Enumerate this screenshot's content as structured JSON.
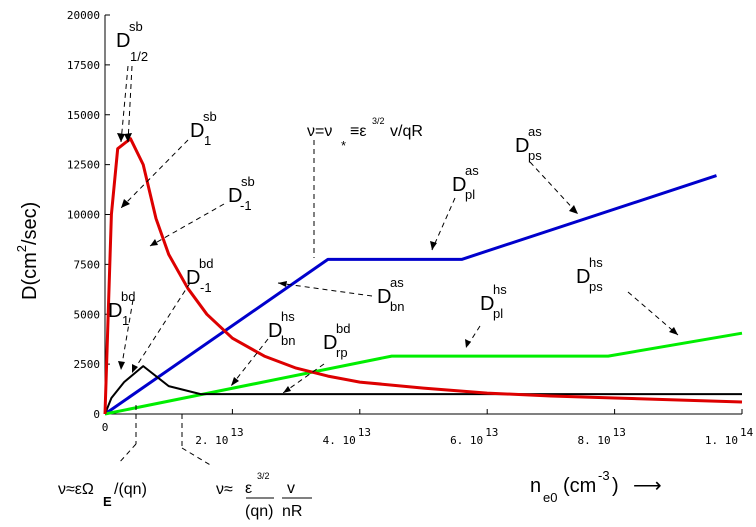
{
  "chart_data": {
    "type": "line",
    "ylabel": "D(cm²/sec)",
    "xlabel": "n_e0(cm⁻³)",
    "ylim": [
      0,
      20000
    ],
    "xlim": [
      0,
      100000000000000.0
    ],
    "y_ticks": [
      0,
      2500,
      5000,
      7500,
      10000,
      12500,
      15000,
      17500,
      20000
    ],
    "y_tick_labels": [
      "0",
      "2500",
      "5000",
      "7500",
      "10000",
      "12500",
      "15000",
      "17500",
      "20000"
    ],
    "x_ticks": [
      {
        "value": 0,
        "main": "0",
        "exp": ""
      },
      {
        "value": 20000000000000.0,
        "main": "2. 10",
        "exp": "13"
      },
      {
        "value": 40000000000000.0,
        "main": "4. 10",
        "exp": "13"
      },
      {
        "value": 60000000000000.0,
        "main": "6. 10",
        "exp": "13"
      },
      {
        "value": 80000000000000.0,
        "main": "8. 10",
        "exp": "13"
      },
      {
        "value": 100000000000000.0,
        "main": "1. 10",
        "exp": "14"
      }
    ],
    "series": [
      {
        "color": "#0000cc",
        "x": [
          0,
          35000000000000.0,
          56000000000000.0,
          96000000000000.0
        ],
        "y": [
          0,
          7750,
          7750,
          11950
        ]
      },
      {
        "color": "#00ee00",
        "x": [
          0,
          45000000000000.0,
          79000000000000.0,
          100000000000000.0
        ],
        "y": [
          0,
          2900,
          2900,
          4050
        ]
      },
      {
        "color": "#000000",
        "x": [
          0,
          1000000000000.0,
          3000000000000.0,
          6000000000000.0,
          10000000000000.0,
          15000000000000.0,
          20000000000000.0,
          30000000000000.0,
          50000000000000.0,
          70000000000000.0,
          100000000000000.0
        ],
        "y": [
          0,
          800,
          1600,
          2400,
          1400,
          1000,
          1000,
          1000,
          1000,
          1000,
          1000
        ]
      },
      {
        "color": "#dd0000",
        "x": [
          0,
          1000000000000.0,
          2000000000000.0,
          4000000000000.0,
          6000000000000.0,
          8000000000000.0,
          10000000000000.0,
          13000000000000.0,
          16000000000000.0,
          20000000000000.0,
          25000000000000.0,
          30000000000000.0,
          35000000000000.0,
          40000000000000.0,
          50000000000000.0,
          60000000000000.0,
          70000000000000.0,
          80000000000000.0,
          90000000000000.0,
          100000000000000.0
        ],
        "y": [
          0,
          10000,
          13300,
          13800,
          12500,
          9800,
          8000,
          6300,
          5000,
          3800,
          2900,
          2300,
          1900,
          1600,
          1300,
          1050,
          900,
          800,
          700,
          600
        ]
      }
    ]
  },
  "labels": {
    "ylabel_main": "D(cm",
    "ylabel_sup": "2",
    "ylabel_rest": "/sec)",
    "xlabel_main": "n",
    "xlabel_sub": "e0",
    "xlabel_unit": "(cm",
    "xlabel_sup": "-3",
    "xlabel_close": ")",
    "arrow": "⟶",
    "sb": "sb",
    "bd": "bd",
    "as": "as",
    "hs": "hs",
    "half": "1/2",
    "one": "1",
    "neg1": "-1",
    "ps": "ps",
    "pl": "pl",
    "bn": "bn",
    "rp": "rp",
    "D": "D",
    "nu_star": "ν=ν",
    "star": "*",
    "eq_eps": "≡ε",
    "three_half": "3/2",
    "v_qR": "v/qR",
    "nu_approx1": "ν≈εΩ",
    "E": "E",
    "qn1": "/(qn)",
    "nu_approx2": "ν≈",
    "eps2": "ε",
    "three_half2": "3/2",
    "qn2": "(qn)",
    "v": "v",
    "nR": "nR"
  }
}
